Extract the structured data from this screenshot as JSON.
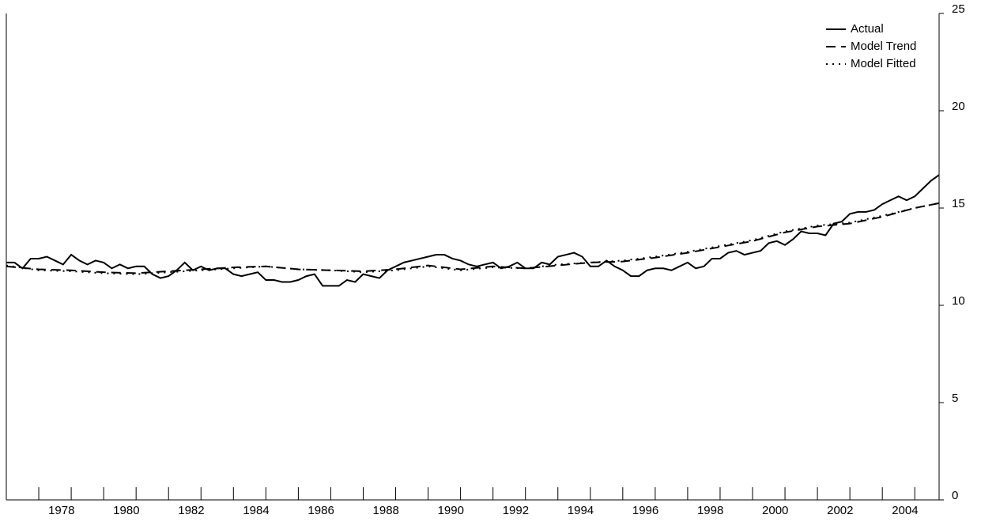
{
  "chart_data": {
    "type": "line",
    "x": [
      1977,
      1977.25,
      1977.5,
      1977.75,
      1978,
      1978.25,
      1978.5,
      1978.75,
      1979,
      1979.25,
      1979.5,
      1979.75,
      1980,
      1980.25,
      1980.5,
      1980.75,
      1981,
      1981.25,
      1981.5,
      1981.75,
      1982,
      1982.25,
      1982.5,
      1982.75,
      1983,
      1983.25,
      1983.5,
      1983.75,
      1984,
      1984.25,
      1984.5,
      1984.75,
      1985,
      1985.25,
      1985.5,
      1985.75,
      1986,
      1986.25,
      1986.5,
      1986.75,
      1987,
      1987.25,
      1987.5,
      1987.75,
      1988,
      1988.25,
      1988.5,
      1988.75,
      1989,
      1989.25,
      1989.5,
      1989.75,
      1990,
      1990.25,
      1990.5,
      1990.75,
      1991,
      1991.25,
      1991.5,
      1991.75,
      1992,
      1992.25,
      1992.5,
      1992.75,
      1993,
      1993.25,
      1993.5,
      1993.75,
      1994,
      1994.25,
      1994.5,
      1994.75,
      1995,
      1995.25,
      1995.5,
      1995.75,
      1996,
      1996.25,
      1996.5,
      1996.75,
      1997,
      1997.25,
      1997.5,
      1997.75,
      1998,
      1998.25,
      1998.5,
      1998.75,
      1999,
      1999.25,
      1999.5,
      1999.75,
      2000,
      2000.25,
      2000.5,
      2000.75,
      2001,
      2001.25,
      2001.5,
      2001.75,
      2002,
      2002.25,
      2002.5,
      2002.75,
      2003,
      2003.25,
      2003.5,
      2003.75,
      2004,
      2004.25,
      2004.5,
      2004.75,
      2005,
      2005.25,
      2005.5,
      2005.75
    ],
    "series": [
      {
        "name": "Actual",
        "color": "#000000",
        "dash": "solid",
        "values": [
          12.2,
          12.2,
          11.9,
          12.4,
          12.4,
          12.5,
          12.3,
          12.1,
          12.6,
          12.3,
          12.1,
          12.3,
          12.2,
          11.9,
          12.1,
          11.9,
          12.0,
          12.0,
          11.6,
          11.4,
          11.5,
          11.8,
          12.2,
          11.8,
          12.0,
          11.8,
          11.9,
          11.9,
          11.6,
          11.5,
          11.6,
          11.7,
          11.3,
          11.3,
          11.2,
          11.2,
          11.3,
          11.5,
          11.6,
          11.0,
          11.0,
          11.0,
          11.3,
          11.2,
          11.6,
          11.5,
          11.4,
          11.8,
          12.0,
          12.2,
          12.3,
          12.4,
          12.5,
          12.6,
          12.6,
          12.4,
          12.3,
          12.1,
          12.0,
          12.1,
          12.2,
          11.9,
          12.0,
          12.2,
          11.9,
          11.9,
          12.2,
          12.1,
          12.5,
          12.6,
          12.7,
          12.5,
          12.0,
          12.0,
          12.3,
          12.0,
          11.8,
          11.5,
          11.5,
          11.8,
          11.9,
          11.9,
          11.8,
          12.0,
          12.2,
          11.9,
          12.0,
          12.4,
          12.4,
          12.7,
          12.8,
          12.6,
          12.7,
          12.8,
          13.2,
          13.3,
          13.1,
          13.4,
          13.8,
          13.7,
          13.7,
          13.6,
          14.2,
          14.3,
          14.7,
          14.8,
          14.8,
          14.9,
          15.2,
          15.4,
          15.6,
          15.4,
          15.6,
          16.0,
          16.4,
          16.7
        ]
      },
      {
        "name": "Model Trend",
        "color": "#000000",
        "dash": "dashed",
        "x": [
          1977,
          1978,
          1979,
          1980,
          1981,
          1982,
          1983,
          1984,
          1985,
          1986,
          1987,
          1988,
          1989,
          1990,
          1991,
          1992,
          1993,
          1994,
          1995,
          1996,
          1997,
          1998,
          1999,
          2000,
          2001,
          2002,
          2003,
          2004,
          2005,
          2005.75
        ],
        "values": [
          12.0,
          11.85,
          11.8,
          11.7,
          11.65,
          11.75,
          11.85,
          11.95,
          12.0,
          11.85,
          11.8,
          11.75,
          11.85,
          12.05,
          11.85,
          12.0,
          11.9,
          12.05,
          12.2,
          12.25,
          12.45,
          12.7,
          13.0,
          13.3,
          13.75,
          14.05,
          14.2,
          14.55,
          15.0,
          15.25
        ]
      },
      {
        "name": "Model Fitted",
        "color": "#000000",
        "dash": "dotted",
        "x": [
          1977,
          1978,
          1979,
          1980,
          1981,
          1982,
          1983,
          1984,
          1985,
          1986,
          1987,
          1988,
          1989,
          1990,
          1991,
          1992,
          1993,
          1994,
          1995,
          1996,
          1997,
          1998,
          1999,
          2000,
          2001,
          2002,
          2003,
          2004,
          2005,
          2005.75
        ],
        "values": [
          12.05,
          11.8,
          11.75,
          11.65,
          11.6,
          11.7,
          11.8,
          11.9,
          12.0,
          11.85,
          11.8,
          11.7,
          11.8,
          12.0,
          11.8,
          11.95,
          11.9,
          12.1,
          12.2,
          12.3,
          12.5,
          12.75,
          13.05,
          13.35,
          13.8,
          14.1,
          14.25,
          14.6,
          15.0,
          15.25
        ]
      }
    ],
    "xlim": [
      1977,
      2005.75
    ],
    "xticks": [
      1978,
      1980,
      1982,
      1984,
      1986,
      1988,
      1990,
      1992,
      1994,
      1996,
      1998,
      2000,
      2002,
      2004
    ],
    "ylim": [
      0,
      25
    ],
    "yticks": [
      0,
      5,
      10,
      15,
      20,
      25
    ],
    "legend": "top-right"
  }
}
